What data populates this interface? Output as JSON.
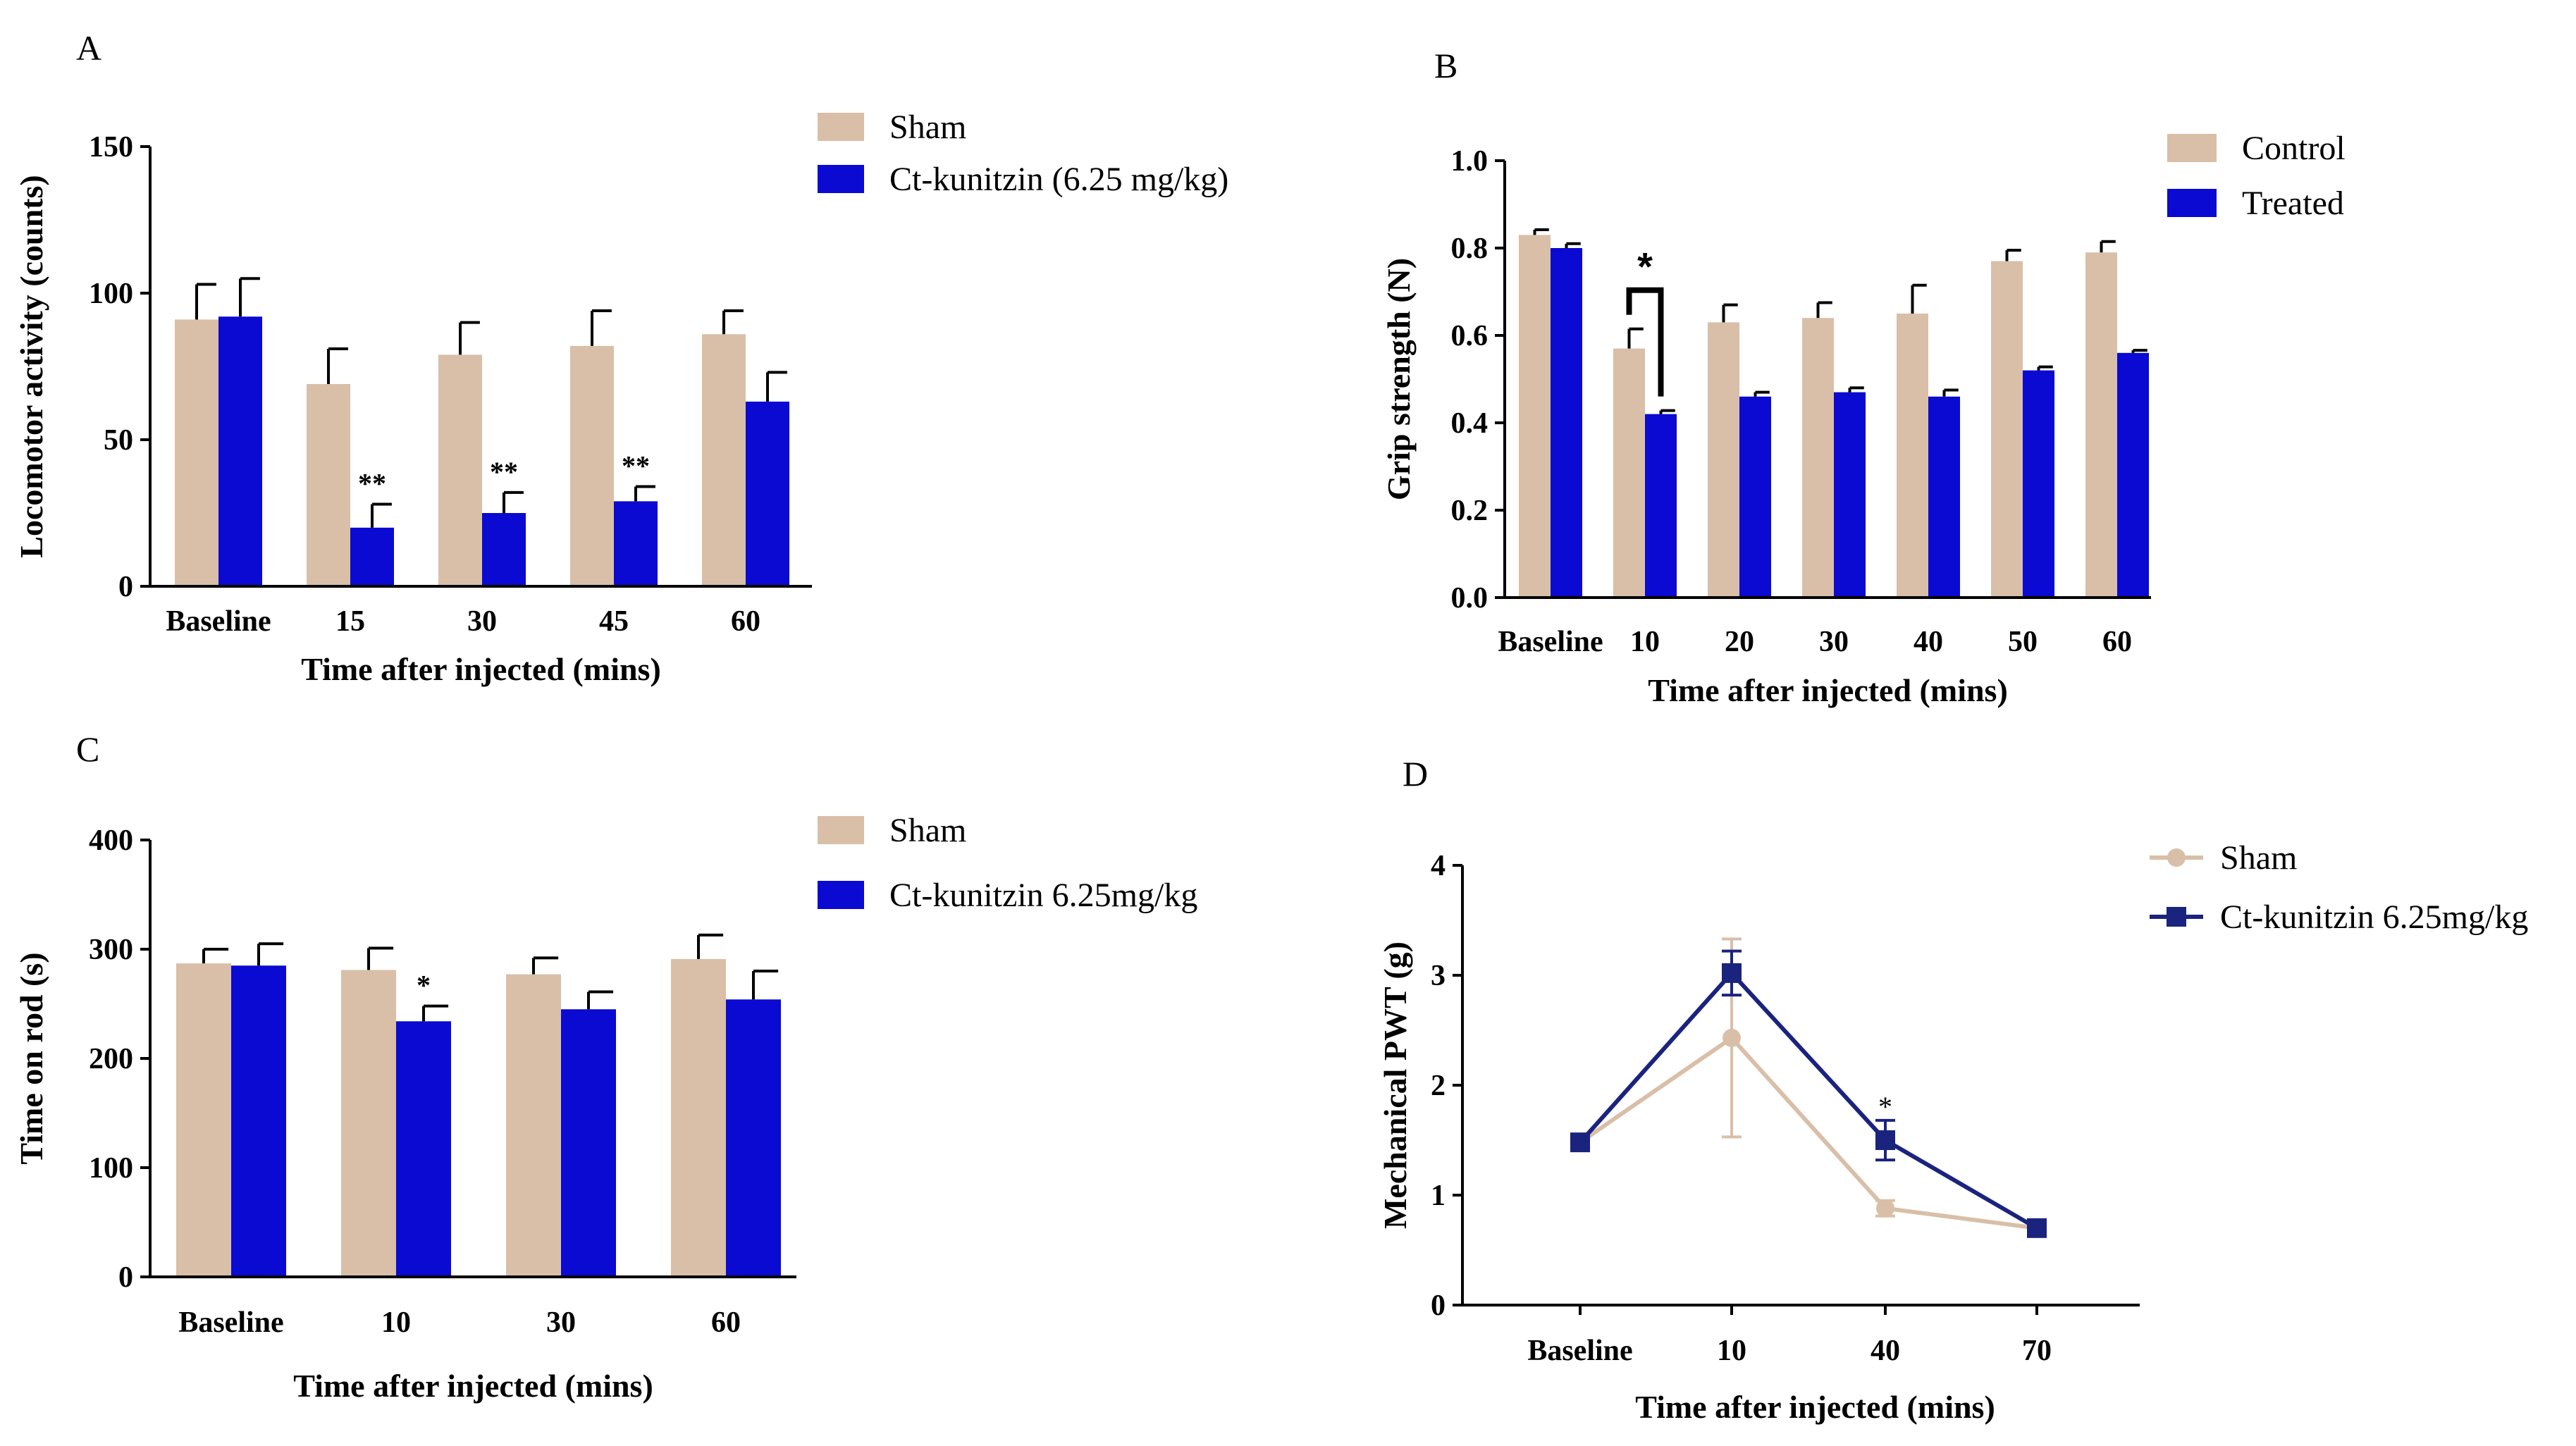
{
  "colors": {
    "sham": "#D9BFA8",
    "treated": "#0A0AD2",
    "line_treated": "#1A237E",
    "axis": "#000000"
  },
  "chart_data": [
    {
      "id": "A",
      "type": "bar",
      "panel_label": "A",
      "title": "",
      "xlabel": "Time after injected (mins)",
      "ylabel": "Locomotor activity (counts)",
      "ylim": [
        0,
        150
      ],
      "yticks": [
        0,
        50,
        100,
        150
      ],
      "categories": [
        "Baseline",
        "15",
        "30",
        "45",
        "60"
      ],
      "series": [
        {
          "name": "Sham",
          "color": "#D9BFA8",
          "values": [
            91,
            69,
            79,
            82,
            86
          ],
          "errors": [
            12,
            12,
            11,
            12,
            8
          ]
        },
        {
          "name": "Ct-kunitzin (6.25 mg/kg)",
          "color": "#0A0AD2",
          "values": [
            92,
            20,
            25,
            29,
            63
          ],
          "errors": [
            13,
            8,
            7,
            5,
            10
          ]
        }
      ],
      "annotations": [
        {
          "category_index": 1,
          "series_index": 1,
          "text": "**"
        },
        {
          "category_index": 2,
          "series_index": 1,
          "text": "**"
        },
        {
          "category_index": 3,
          "series_index": 1,
          "text": "**"
        }
      ],
      "legend": "top-right"
    },
    {
      "id": "B",
      "type": "bar",
      "panel_label": "B",
      "title": "",
      "xlabel": "Time after injected (mins)",
      "ylabel": "Grip strength (N)",
      "ylim": [
        0,
        1.0
      ],
      "yticks": [
        "0.0",
        "0.2",
        "0.4",
        "0.6",
        "0.8",
        "1.0"
      ],
      "categories": [
        "Baseline",
        "10",
        "20",
        "30",
        "40",
        "50",
        "60"
      ],
      "series": [
        {
          "name": "Control",
          "color": "#D9BFA8",
          "values": [
            0.83,
            0.57,
            0.63,
            0.64,
            0.65,
            0.77,
            0.79
          ],
          "errors": [
            0.012,
            0.045,
            0.04,
            0.035,
            0.065,
            0.025,
            0.025
          ]
        },
        {
          "name": "Treated",
          "color": "#0A0AD2",
          "values": [
            0.8,
            0.42,
            0.46,
            0.47,
            0.46,
            0.52,
            0.56
          ],
          "errors": [
            0.01,
            0.008,
            0.01,
            0.01,
            0.015,
            0.008,
            0.006
          ]
        }
      ],
      "annotations": [
        {
          "category_index": 1,
          "text": "*",
          "bracket": true
        }
      ],
      "legend": "top-right"
    },
    {
      "id": "C",
      "type": "bar",
      "panel_label": "C",
      "title": "",
      "xlabel": "Time after injected (mins)",
      "ylabel": "Time on rod (s)",
      "ylim": [
        0,
        400
      ],
      "yticks": [
        0,
        100,
        200,
        300,
        400
      ],
      "categories": [
        "Baseline",
        "10",
        "30",
        "60"
      ],
      "series": [
        {
          "name": "Sham",
          "color": "#D9BFA8",
          "values": [
            287,
            281,
            277,
            291
          ],
          "errors": [
            13,
            20,
            15,
            22
          ]
        },
        {
          "name": "Ct-kunitzin  6.25mg/kg",
          "color": "#0A0AD2",
          "values": [
            285,
            234,
            245,
            254
          ],
          "errors": [
            20,
            14,
            16,
            26
          ]
        }
      ],
      "annotations": [
        {
          "category_index": 1,
          "series_index": 1,
          "text": "*"
        }
      ],
      "legend": "top-right"
    },
    {
      "id": "D",
      "type": "line",
      "panel_label": "D",
      "title": "",
      "xlabel": "Time after injected (mins)",
      "ylabel": "Mechanical PWT (g)",
      "ylim": [
        0,
        4
      ],
      "yticks": [
        0,
        1,
        2,
        3,
        4
      ],
      "categories": [
        "Baseline",
        "10",
        "40",
        "70"
      ],
      "series": [
        {
          "name": "Sham",
          "color": "#D9BFA8",
          "marker": "circle",
          "values": [
            1.48,
            2.43,
            0.88,
            0.7
          ],
          "errors": [
            0.03,
            0.9,
            0.07,
            0.03
          ]
        },
        {
          "name": "Ct-kunitzin  6.25mg/kg",
          "color": "#1A237E",
          "marker": "square",
          "values": [
            1.48,
            3.02,
            1.5,
            0.7
          ],
          "errors": [
            0.03,
            0.2,
            0.18,
            0.03
          ]
        }
      ],
      "annotations": [
        {
          "category_index": 2,
          "series_index": 1,
          "text": "*"
        }
      ],
      "legend": "top-right"
    }
  ]
}
